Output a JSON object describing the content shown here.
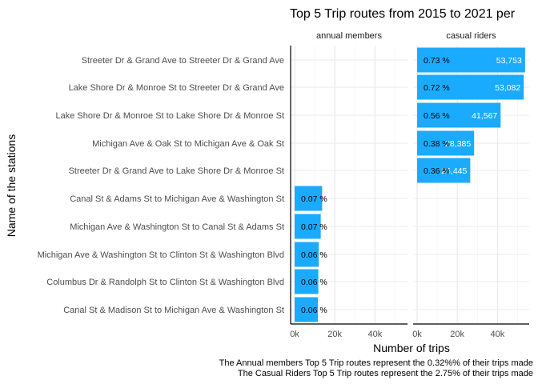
{
  "chart_data": {
    "type": "bar",
    "orientation": "horizontal",
    "title": "Top 5 Trip routes from 2015 to 2021 per",
    "xlabel": "Number of trips",
    "ylabel": "Name of the stations",
    "xlim": [
      0,
      55000
    ],
    "x_ticks": [
      {
        "value": 0,
        "label": "0k"
      },
      {
        "value": 20000,
        "label": "20k"
      },
      {
        "value": 40000,
        "label": "40k"
      }
    ],
    "grid": true,
    "categories": [
      "Streeter Dr & Grand Ave to Streeter Dr & Grand Ave",
      "Lake Shore Dr & Monroe St to Streeter Dr & Grand Ave",
      "Lake Shore Dr & Monroe St to Lake Shore Dr & Monroe St",
      "Michigan Ave & Oak St to Michigan Ave & Oak St",
      "Streeter Dr & Grand Ave to Lake Shore Dr & Monroe St",
      "Canal St & Adams St to Michigan Ave & Washington St",
      "Michigan Ave & Washington St to Canal St & Adams St",
      "Michigan Ave & Washington St to Clinton St & Washington Blvd",
      "Columbus Dr & Randolph St to Clinton St & Washington Blvd",
      "Canal St & Madison St to Michigan Ave & Washington St"
    ],
    "bar_color": "#1aabff",
    "facets": [
      {
        "name": "annual members",
        "values": [
          null,
          null,
          null,
          null,
          null,
          13700,
          13000,
          12000,
          11800,
          11600
        ],
        "value_labels": [
          "",
          "",
          "",
          "",
          "",
          "",
          "",
          "",
          "",
          ""
        ],
        "pct_labels": [
          "",
          "",
          "",
          "",
          "",
          "0.07 %",
          "0.07 %",
          "0.06 %",
          "0.06 %",
          "0.06 %"
        ]
      },
      {
        "name": "casual riders",
        "values": [
          53753,
          53082,
          41567,
          28385,
          26445,
          null,
          null,
          null,
          null,
          null
        ],
        "value_labels": [
          "53,753",
          "53,082",
          "41,567",
          "28,385",
          "26,445",
          "",
          "",
          "",
          "",
          ""
        ],
        "pct_labels": [
          "0.73 %",
          "0.72 %",
          "0.56 %",
          "0.38 %",
          "0.36 %",
          "",
          "",
          "",
          "",
          ""
        ]
      }
    ],
    "captions": [
      "The Annual members Top 5 Trip routes represent the 0.32%% of their trips made",
      "The Casual Riders Top 5 Trip routes represent the 2.75% of their trips made"
    ]
  }
}
